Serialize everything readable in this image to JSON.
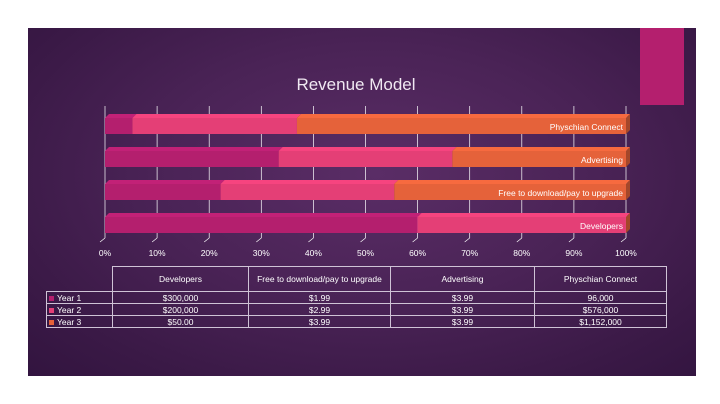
{
  "chart_data": {
    "type": "bar",
    "orientation": "horizontal",
    "stacked": "percent",
    "title": "Revenue Model",
    "categories": [
      "Physchian Connect",
      "Advertising",
      "Free to download/pay to upgrade",
      "Developers"
    ],
    "series": [
      {
        "name": "Year 1",
        "color": "#b41f6e",
        "values": [
          96000,
          3.99,
          1.99,
          300000
        ],
        "display": [
          "96,000",
          "$3.99",
          "$1.99",
          "$300,000"
        ]
      },
      {
        "name": "Year 2",
        "color": "#e43f76",
        "values": [
          576000,
          3.99,
          2.99,
          200000
        ],
        "display": [
          "$576,000",
          "$3.99",
          "$2.99",
          "$200,000"
        ]
      },
      {
        "name": "Year 3",
        "color": "#e5623a",
        "values": [
          1152000,
          3.99,
          3.99,
          50
        ],
        "display": [
          "$1,152,000",
          "$3.99",
          "$3.99",
          "$50.00"
        ]
      }
    ],
    "xlim": [
      0,
      100
    ],
    "x_ticks": [
      "0%",
      "10%",
      "20%",
      "30%",
      "40%",
      "50%",
      "60%",
      "70%",
      "80%",
      "90%",
      "100%"
    ],
    "grid": true,
    "table_columns": [
      "Developers",
      "Free to download/pay to upgrade",
      "Advertising",
      "Physchian Connect"
    ]
  }
}
